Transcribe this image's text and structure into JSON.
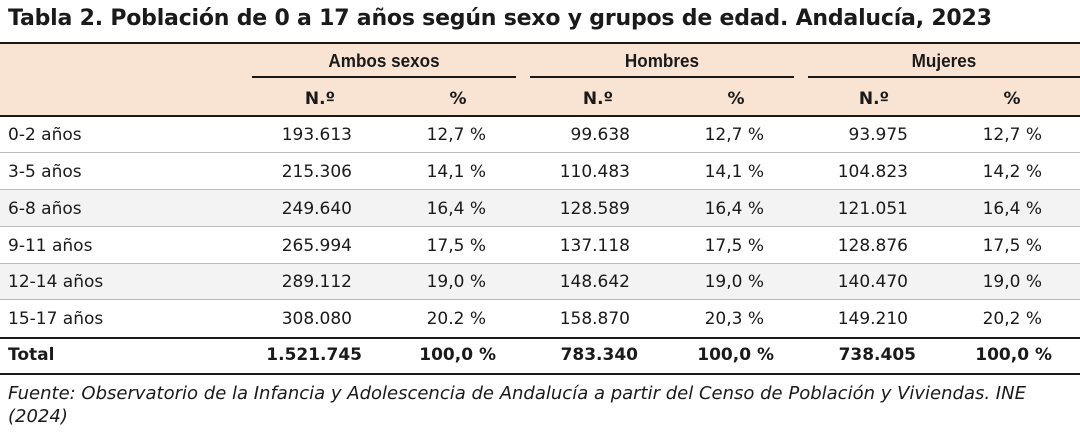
{
  "title": "Tabla 2. Población de 0 a 17 años según sexo y grupos de edad. Andalucía, 2023",
  "headers": {
    "groups": [
      "Ambos sexos",
      "Hombres",
      "Mujeres"
    ],
    "sub": [
      "N.º",
      "%",
      "N.º",
      "%",
      "N.º",
      "%"
    ]
  },
  "rows": [
    {
      "label": "0-2 años",
      "values": [
        "193.613",
        "12,7 %",
        "99.638",
        "12,7 %",
        "93.975",
        "12,7 %"
      ]
    },
    {
      "label": "3-5 años",
      "values": [
        "215.306",
        "14,1 %",
        "110.483",
        "14,1 %",
        "104.823",
        "14,2 %"
      ]
    },
    {
      "label": "6-8 años",
      "values": [
        "249.640",
        "16,4 %",
        "128.589",
        "16,4 %",
        "121.051",
        "16,4 %"
      ]
    },
    {
      "label": "9-11 años",
      "values": [
        "265.994",
        "17,5 %",
        "137.118",
        "17,5 %",
        "128.876",
        "17,5 %"
      ]
    },
    {
      "label": "12-14 años",
      "values": [
        "289.112",
        "19,0 %",
        "148.642",
        "19,0 %",
        "140.470",
        "19,0 %"
      ]
    },
    {
      "label": "15-17 años",
      "values": [
        "308.080",
        "20.2 %",
        "158.870",
        "20,3 %",
        "149.210",
        "20,2 %"
      ]
    }
  ],
  "total": {
    "label": "Total",
    "values": [
      "1.521.745",
      "100,0 %",
      "783.340",
      "100,0 %",
      "738.405",
      "100,0 %"
    ]
  },
  "source": "Fuente: Observatorio de la Infancia y Adolescencia de Andalucía a partir del Censo de Población y Viviendas. INE (2024)",
  "colors": {
    "header_band": "#f9e4d4",
    "row_shade": "#f3f3f3",
    "rule": "#1a1a1a"
  }
}
